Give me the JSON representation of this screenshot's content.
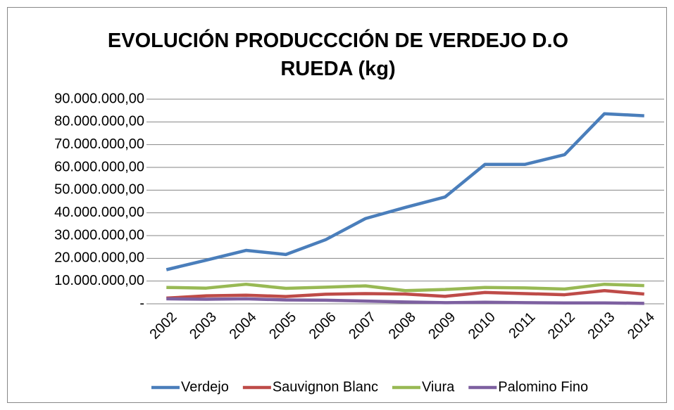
{
  "chart_data": {
    "type": "line",
    "title": "EVOLUCIÓN PRODUCCCIÓN DE VERDEJO D.O RUEDA (kg)",
    "categories": [
      "2002",
      "2003",
      "2004",
      "2005",
      "2006",
      "2007",
      "2008",
      "2009",
      "2010",
      "2011",
      "2012",
      "2013",
      "2014"
    ],
    "series": [
      {
        "name": "Verdejo",
        "color": "#4a7ebb",
        "values": [
          15000000,
          19200000,
          23500000,
          21700000,
          28200000,
          37500000,
          42400000,
          47000000,
          61300000,
          61300000,
          65600000,
          83600000,
          82700000
        ]
      },
      {
        "name": "Sauvignon Blanc",
        "color": "#be4b48",
        "values": [
          2500000,
          3500000,
          3800000,
          3200000,
          4200000,
          4500000,
          4300000,
          3300000,
          5000000,
          4500000,
          4000000,
          5800000,
          4300000
        ]
      },
      {
        "name": "Viura",
        "color": "#98b954",
        "values": [
          7200000,
          6900000,
          8600000,
          6800000,
          7300000,
          7900000,
          5800000,
          6300000,
          7200000,
          7000000,
          6500000,
          8600000,
          8000000
        ]
      },
      {
        "name": "Palomino Fino",
        "color": "#7d60a0",
        "values": [
          2200000,
          2000000,
          2200000,
          1700000,
          1600000,
          1200000,
          800000,
          500000,
          700000,
          500000,
          400000,
          400000,
          200000
        ]
      }
    ],
    "ylim": [
      0,
      90000000
    ],
    "yticks": [
      {
        "value": 0,
        "label": "-"
      },
      {
        "value": 10000000,
        "label": "10.000.000,00"
      },
      {
        "value": 20000000,
        "label": "20.000.000,00"
      },
      {
        "value": 30000000,
        "label": "30.000.000,00"
      },
      {
        "value": 40000000,
        "label": "40.000.000,00"
      },
      {
        "value": 50000000,
        "label": "50.000.000,00"
      },
      {
        "value": 60000000,
        "label": "60.000.000,00"
      },
      {
        "value": 70000000,
        "label": "70.000.000,00"
      },
      {
        "value": 80000000,
        "label": "80.000.000,00"
      },
      {
        "value": 90000000,
        "label": "90.000.000,00"
      }
    ],
    "grid": true,
    "legend": "bottom"
  }
}
